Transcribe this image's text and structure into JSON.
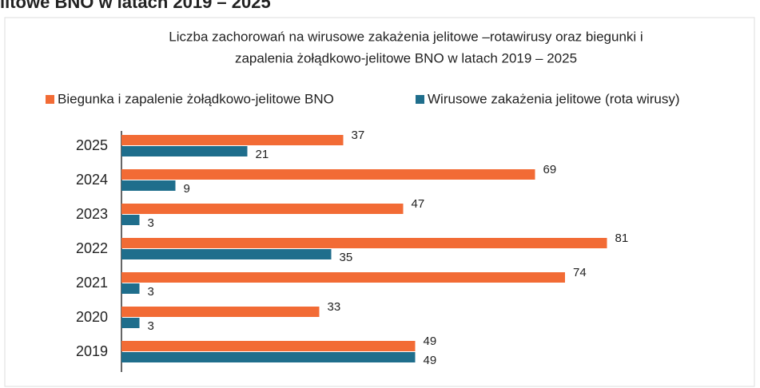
{
  "heading": "litowe BNO w latach 2019 – 2025",
  "chart_data": {
    "type": "hbar",
    "title": [
      "Liczba zachorowań na wirusowe zakażenia jelitowe –rotawirusy oraz biegunki i",
      "zapalenia żołądkowo-jelitowe BNO  w latach 2019 – 2025"
    ],
    "categories": [
      "2025",
      "2024",
      "2023",
      "2022",
      "2021",
      "2020",
      "2019"
    ],
    "series": [
      {
        "name": "Biegunka i zapalenie żołądkowo-jelitowe BNO",
        "color": "#f26b35",
        "values": [
          37,
          69,
          47,
          81,
          74,
          33,
          49
        ]
      },
      {
        "name": "Wirusowe zakażenia jelitowe (rota wirusy)",
        "color": "#1f6e8c",
        "values": [
          21,
          9,
          3,
          35,
          3,
          3,
          49
        ]
      }
    ],
    "legend": "top"
  }
}
